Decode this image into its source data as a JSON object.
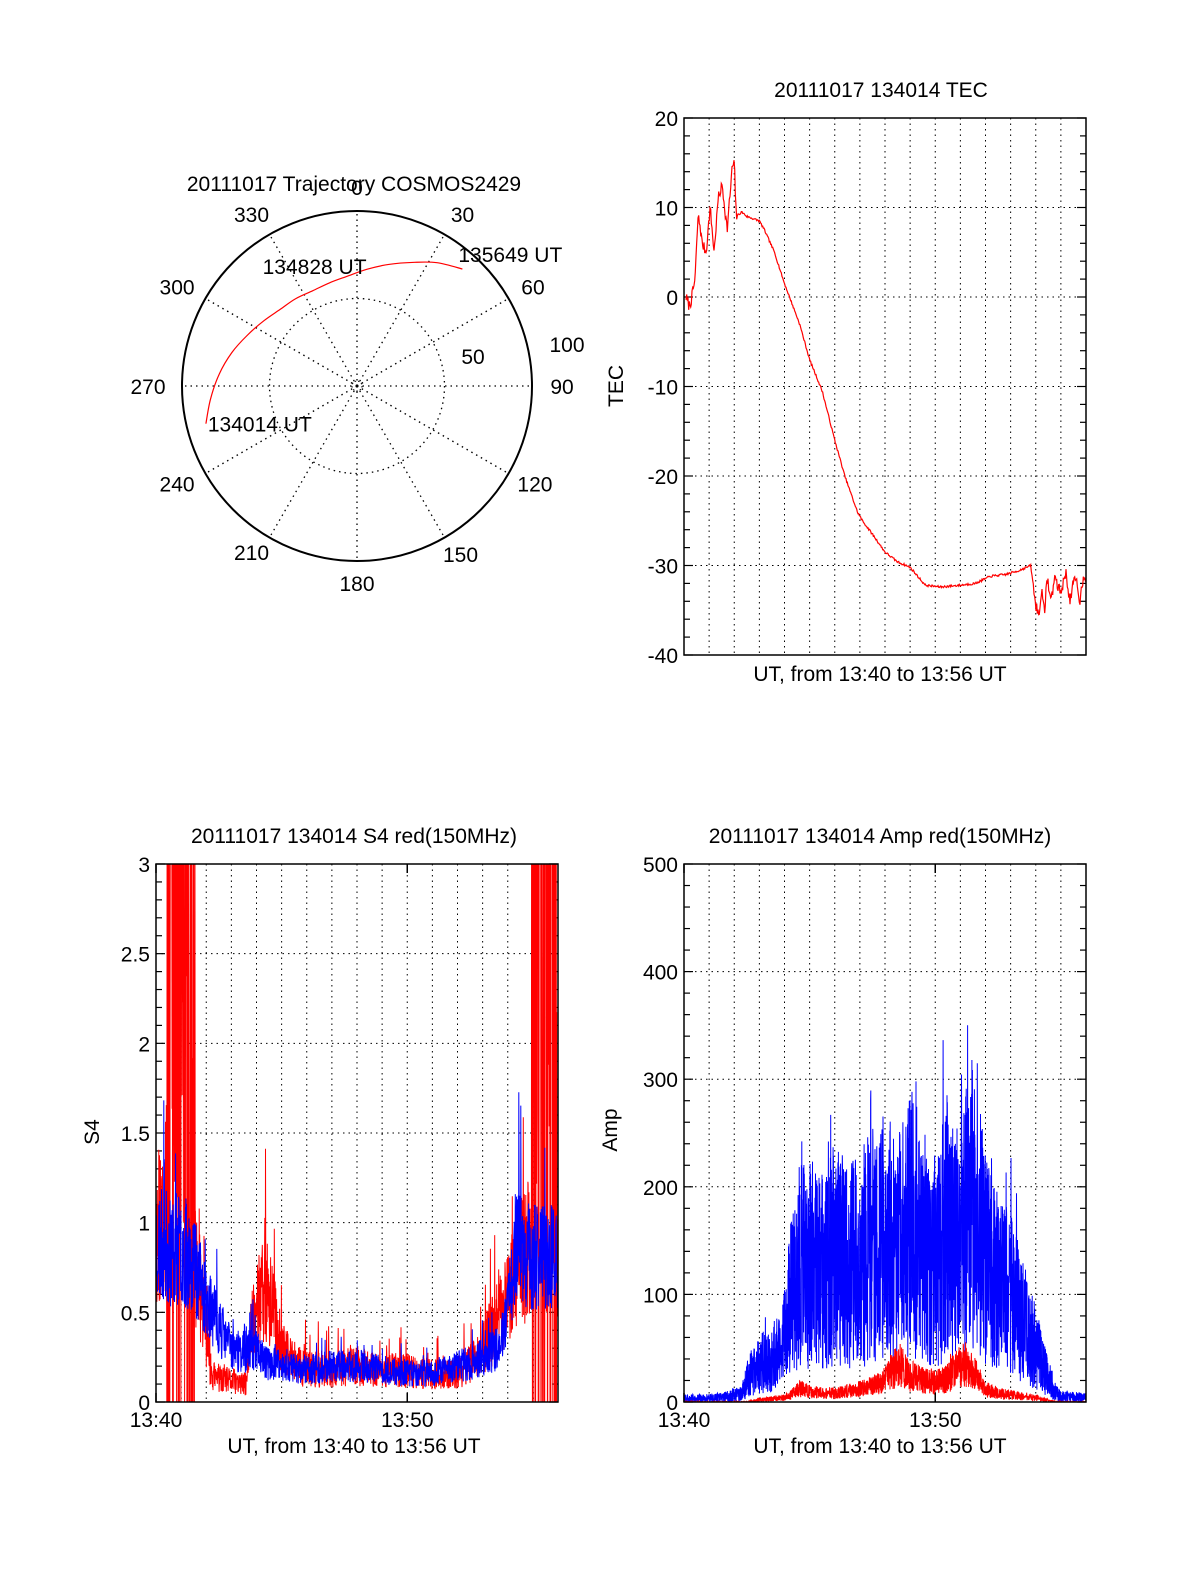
{
  "chart_data": [
    {
      "type": "polar",
      "id": "trajectory",
      "title": "20111017 Trajectory COSMOS2429",
      "azimuth_labels": [
        "0",
        "30",
        "60",
        "90",
        "120",
        "150",
        "180",
        "210",
        "240",
        "270",
        "300",
        "330"
      ],
      "radial_labels": [
        "50",
        "100"
      ],
      "rlim": [
        0,
        100
      ],
      "grid": true,
      "series": [
        {
          "name": "trajectory",
          "color": "#ff0000",
          "points_az_r": [
            [
              256,
              89
            ],
            [
              265,
              84
            ],
            [
              275,
              79
            ],
            [
              285,
              74
            ],
            [
              295,
              69
            ],
            [
              305,
              65
            ],
            [
              315,
              62
            ],
            [
              325,
              61
            ],
            [
              335,
              60
            ],
            [
              345,
              61
            ],
            [
              355,
              63
            ],
            [
              5,
              67
            ],
            [
              15,
              72
            ],
            [
              25,
              78
            ],
            [
              33,
              84
            ],
            [
              42,
              90
            ]
          ]
        }
      ],
      "annotations": [
        {
          "text": "134014 UT",
          "az": 256,
          "r": 89
        },
        {
          "text": "134828 UT",
          "az": 335,
          "r": 60
        },
        {
          "text": "135649 UT",
          "az": 42,
          "r": 90
        }
      ]
    },
    {
      "type": "line",
      "id": "tec",
      "title": "20111017 134014 TEC",
      "xlabel": "UT, from 13:40 to 13:56 UT",
      "ylabel": "TEC",
      "xlim_minutes": [
        0,
        16
      ],
      "ylim": [
        -40,
        20
      ],
      "yticks": [
        "20",
        "10",
        "0",
        "-10",
        "-20",
        "-30",
        "-40"
      ],
      "ytick_values": [
        20,
        10,
        0,
        -10,
        -20,
        -30,
        -40
      ],
      "grid": true,
      "series": [
        {
          "name": "TEC",
          "color": "#ff0000",
          "x_minutes": [
            0.08,
            0.2,
            0.28,
            0.44,
            0.56,
            0.64,
            0.72,
            0.88,
            1.04,
            1.2,
            1.36,
            1.52,
            1.72,
            1.92,
            2.0,
            2.08,
            2.3,
            2.5,
            2.7,
            3.0,
            3.2,
            3.6,
            4.0,
            4.6,
            5.0,
            5.5,
            6.0,
            6.4,
            6.9,
            7.1,
            7.5,
            8.0,
            8.5,
            9.0,
            9.6,
            10.2,
            11.0,
            11.6,
            12.2,
            12.8,
            13.3,
            13.8,
            14.0,
            14.16,
            14.24,
            14.36,
            14.44,
            14.6,
            14.76,
            14.9,
            15.0,
            15.2,
            15.36,
            15.5,
            15.6,
            15.76,
            15.9,
            16.0
          ],
          "y": [
            0,
            -1,
            -0.5,
            2,
            9,
            8,
            6,
            5,
            10,
            5,
            11,
            12.5,
            7.5,
            14.5,
            15,
            9,
            9.5,
            9,
            8.8,
            8.5,
            7.5,
            5,
            1.5,
            -3,
            -7,
            -10.5,
            -16,
            -20,
            -24,
            -25,
            -26.5,
            -28.5,
            -29.6,
            -30.2,
            -32.2,
            -32.4,
            -32.2,
            -32,
            -31.2,
            -31,
            -30.6,
            -30,
            -34.5,
            -35.5,
            -32,
            -36,
            -31,
            -34,
            -31.2,
            -32.5,
            -33,
            -30.8,
            -34,
            -32,
            -31.5,
            -34,
            -31,
            -31.3
          ]
        }
      ]
    },
    {
      "type": "line",
      "id": "s4",
      "title": "20111017 134014 S4 red(150MHz)",
      "xlabel": "UT, from 13:40 to 13:56 UT",
      "ylabel": "S4",
      "xlim_minutes": [
        0,
        16
      ],
      "ylim": [
        0,
        3
      ],
      "xticks": [
        "13:40",
        "13:50"
      ],
      "xtick_values_minutes": [
        0,
        10
      ],
      "yticks": [
        "3",
        "2.5",
        "2",
        "1.5",
        "1",
        "0.5",
        "0"
      ],
      "ytick_values": [
        3,
        2.5,
        2,
        1.5,
        1,
        0.5,
        0
      ],
      "grid": true,
      "series": [
        {
          "name": "red (150MHz)",
          "color": "#ff0000",
          "envelope_x_minutes": [
            0,
            0.5,
            1.0,
            1.6,
            1.9,
            2.2,
            2.6,
            3.0,
            3.4,
            3.6,
            3.8,
            4.2,
            4.6,
            5.0,
            5.5,
            6.0,
            7.0,
            8.0,
            9.0,
            10.0,
            11.0,
            11.8,
            12.4,
            13.0,
            13.6,
            14.2,
            14.6,
            15.0,
            15.5,
            16.0
          ],
          "envelope_y": [
            0.9,
            1.2,
            1.2,
            0.75,
            0.5,
            0.15,
            0.12,
            0.12,
            0.1,
            0.1,
            0.45,
            0.6,
            0.55,
            0.3,
            0.22,
            0.18,
            0.18,
            0.2,
            0.17,
            0.18,
            0.15,
            0.15,
            0.2,
            0.3,
            0.45,
            0.65,
            0.8,
            0.9,
            0.9,
            0.9
          ],
          "saturated_intervals_minutes": [
            [
              0.42,
              1.55
            ],
            [
              14.95,
              15.95
            ]
          ]
        },
        {
          "name": "blue",
          "color": "#0000ff",
          "envelope_x_minutes": [
            0,
            0.5,
            1.0,
            1.5,
            2.0,
            2.4,
            2.8,
            3.2,
            3.6,
            4.0,
            4.4,
            5.0,
            6.0,
            7.0,
            8.0,
            9.0,
            10.0,
            11.0,
            12.0,
            12.6,
            13.0,
            13.6,
            14.0,
            14.3,
            14.6,
            15.0,
            15.5,
            16.0
          ],
          "envelope_y": [
            0.9,
            0.85,
            0.85,
            0.8,
            0.55,
            0.45,
            0.35,
            0.28,
            0.28,
            0.3,
            0.22,
            0.2,
            0.18,
            0.2,
            0.2,
            0.18,
            0.16,
            0.16,
            0.2,
            0.22,
            0.25,
            0.3,
            0.5,
            0.9,
            0.85,
            0.8,
            0.8,
            0.8
          ]
        }
      ]
    },
    {
      "type": "line",
      "id": "amp",
      "title": "20111017 134014 Amp red(150MHz)",
      "xlabel": "UT, from 13:40 to 13:56 UT",
      "ylabel": "Amp",
      "xlim_minutes": [
        0,
        16
      ],
      "ylim": [
        0,
        500
      ],
      "xticks": [
        "13:40",
        "13:50"
      ],
      "xtick_values_minutes": [
        0,
        10
      ],
      "yticks": [
        "500",
        "400",
        "300",
        "200",
        "100",
        "0"
      ],
      "ytick_values": [
        500,
        400,
        300,
        200,
        100,
        0
      ],
      "grid": true,
      "series": [
        {
          "name": "blue",
          "color": "#0000ff",
          "envelope_x_minutes": [
            0,
            1.5,
            2.3,
            2.6,
            3.0,
            3.4,
            3.8,
            4.0,
            4.3,
            4.6,
            5.0,
            5.5,
            6.0,
            6.5,
            7.0,
            7.5,
            8.0,
            8.5,
            9.0,
            9.5,
            10.0,
            10.5,
            10.8,
            11.1,
            11.4,
            11.7,
            12.0,
            12.5,
            13.0,
            13.4,
            13.8,
            14.2,
            14.6,
            15.0,
            16.0
          ],
          "envelope_y": [
            3,
            4,
            8,
            25,
            35,
            40,
            45,
            60,
            110,
            125,
            130,
            120,
            140,
            125,
            130,
            150,
            155,
            140,
            170,
            145,
            130,
            160,
            150,
            160,
            180,
            190,
            130,
            110,
            100,
            80,
            60,
            40,
            15,
            5,
            4
          ]
        },
        {
          "name": "red (150MHz)",
          "color": "#ff0000",
          "envelope_x_minutes": [
            0,
            2.5,
            3.0,
            3.5,
            4.0,
            4.2,
            4.6,
            5.0,
            5.5,
            6.0,
            6.5,
            7.0,
            7.5,
            8.0,
            8.3,
            8.6,
            9.0,
            9.5,
            10.0,
            10.5,
            10.8,
            11.2,
            11.6,
            12.0,
            12.5,
            13.0,
            13.5,
            14.0,
            14.4,
            14.8,
            16.0
          ],
          "envelope_y": [
            0,
            0,
            2,
            3,
            4,
            6,
            12,
            10,
            8,
            8,
            10,
            12,
            15,
            20,
            30,
            35,
            25,
            20,
            18,
            22,
            30,
            35,
            25,
            12,
            8,
            7,
            5,
            4,
            2,
            0,
            0
          ]
        }
      ]
    }
  ]
}
